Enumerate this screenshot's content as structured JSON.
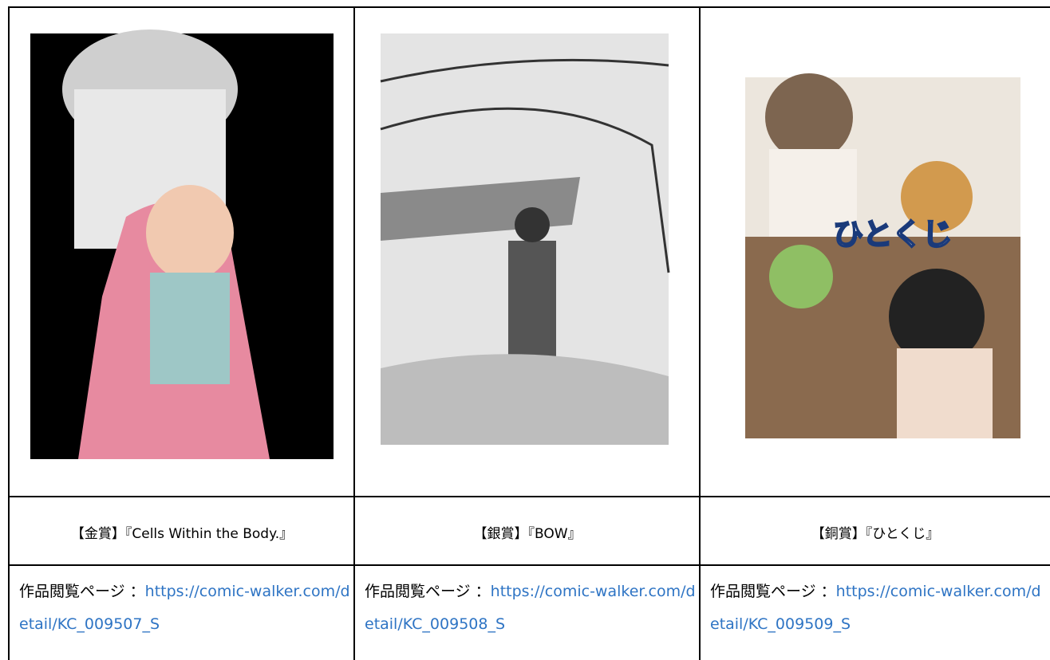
{
  "table": {
    "rows": [
      [
        {
          "caption": "【金賞】『Cells Within the Body.』",
          "label": "作品閲覧ページ ：",
          "url": "https://comic-walker.com/detail/KC_009507_S"
        },
        {
          "caption": "【銀賞】『BOW』",
          "label": "作品閲覧ページ ：",
          "url": "https://comic-walker.com/detail/KC_009508_S"
        },
        {
          "caption": "【銅賞】『ひとくじ』",
          "label": "作品閲覧ページ ：",
          "url": "https://comic-walker.com/detail/KC_009509_S"
        }
      ]
    ]
  }
}
